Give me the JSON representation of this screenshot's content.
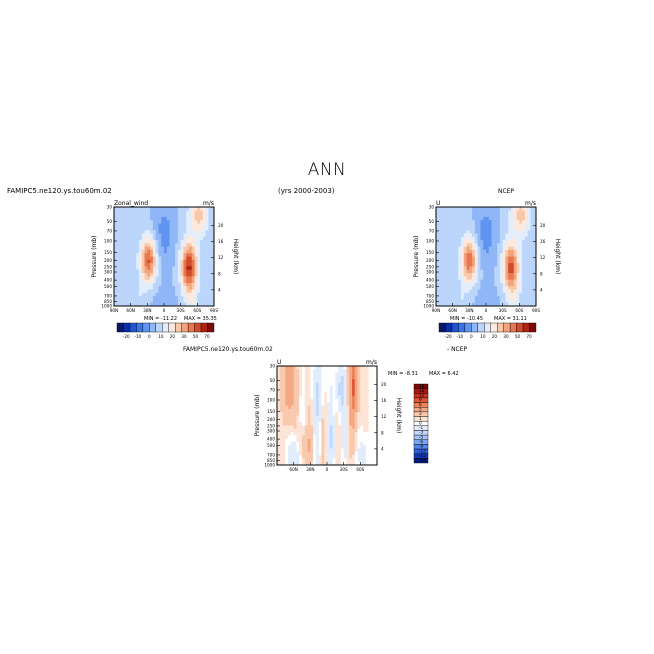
{
  "page": {
    "title": "ANN",
    "case_label": "FAMIPC5.ne120.ys.tou60m.02",
    "years": "(yrs 2000-2003)"
  },
  "chart_data": [
    {
      "type": "heatmap",
      "panel": "model",
      "title_left": "Zonal_wind",
      "title_right": "m/s",
      "ylabel": "Pressure (mb)",
      "ylabel_right": "Height (km)",
      "x_ticks": [
        "90N",
        "60N",
        "30N",
        "0",
        "30S",
        "60S",
        "90S"
      ],
      "x_values": [
        90,
        60,
        30,
        0,
        -30,
        -60,
        -90
      ],
      "y_ticks": [
        "30",
        "50",
        "70",
        "100",
        "150",
        "200",
        "250",
        "300",
        "400",
        "500",
        "700",
        "850",
        "1000"
      ],
      "y_values": [
        30,
        50,
        70,
        100,
        150,
        200,
        250,
        300,
        400,
        500,
        700,
        850,
        1000
      ],
      "y_right_ticks": [
        "20",
        "16",
        "12",
        "8",
        "4"
      ],
      "y_right_values": [
        20,
        16,
        12,
        8,
        4
      ],
      "min_label": "MIN = -11.22",
      "max_label": "MAX = 35.35",
      "min": -11.22,
      "max": 35.35,
      "colorbar_labels": [
        "-20",
        "-10",
        "0",
        "10",
        "20",
        "30",
        "50",
        "70"
      ],
      "jets": [
        {
          "lat": 28,
          "pressure": 200,
          "peak": 30
        },
        {
          "lat": -45,
          "pressure": 250,
          "peak": 35
        }
      ]
    },
    {
      "type": "heatmap",
      "panel": "obs",
      "title_left": "U",
      "title_center": "NCEP",
      "title_right": "m/s",
      "ylabel": "Pressure (mb)",
      "ylabel_right": "Height (km)",
      "x_ticks": [
        "90N",
        "60N",
        "30N",
        "0",
        "30S",
        "60S",
        "90S"
      ],
      "y_ticks": [
        "30",
        "50",
        "70",
        "100",
        "150",
        "200",
        "250",
        "300",
        "400",
        "500",
        "700",
        "850",
        "1000"
      ],
      "y_right_ticks": [
        "20",
        "16",
        "12",
        "8",
        "4"
      ],
      "min_label": "MIN = -10.45",
      "max_label": "MAX = 31.11",
      "min": -10.45,
      "max": 31.11,
      "colorbar_labels": [
        "-20",
        "-10",
        "0",
        "10",
        "20",
        "30",
        "50",
        "70"
      ],
      "jets": [
        {
          "lat": 30,
          "pressure": 200,
          "peak": 28
        },
        {
          "lat": -45,
          "pressure": 250,
          "peak": 31
        }
      ]
    },
    {
      "type": "heatmap",
      "panel": "difference",
      "title_left": "U",
      "title_right": "m/s",
      "header": "FAMIPC5.ne120.ys.tou60m.02",
      "header_suffix": "- NCEP",
      "ylabel": "Pressure (mb)",
      "ylabel_right": "Height (km)",
      "x_ticks": [
        "60N",
        "30N",
        "0",
        "30S",
        "60S"
      ],
      "y_ticks": [
        "30",
        "50",
        "70",
        "100",
        "150",
        "200",
        "250",
        "300",
        "400",
        "500",
        "700",
        "850",
        "1000"
      ],
      "y_right_ticks": [
        "20",
        "16",
        "12",
        "8",
        "4"
      ],
      "min_label": "MIN = -8.31",
      "max_label": "MAX = 6.42",
      "min": -8.31,
      "max": 6.42,
      "colorbar_labels": [
        "18",
        "15",
        "12",
        "9",
        "6",
        "5",
        "3",
        "1",
        "0",
        "-1",
        "-3",
        "-5",
        "-6",
        "-9",
        "-12",
        "-15",
        "-18"
      ]
    }
  ],
  "colors": {
    "seq": [
      "#08196b",
      "#0b2ea3",
      "#1e55d6",
      "#3b74e8",
      "#5f95f1",
      "#8fb6f7",
      "#bcd5fa",
      "#e3eefd",
      "#fde9dd",
      "#f8c8ab",
      "#f2a37c",
      "#e8774f",
      "#d04b2b",
      "#ac2414",
      "#7c0a09"
    ],
    "diff": [
      "#7c0a09",
      "#a61911",
      "#c9301e",
      "#df5737",
      "#ec8258",
      "#f4a984",
      "#f8c9ad",
      "#fce4d6",
      "#ffffff",
      "#e1ecfd",
      "#c3d8fb",
      "#a3c2f8",
      "#7ea5f3",
      "#5684ea",
      "#2f5fd9",
      "#1337b2",
      "#061a78"
    ]
  }
}
